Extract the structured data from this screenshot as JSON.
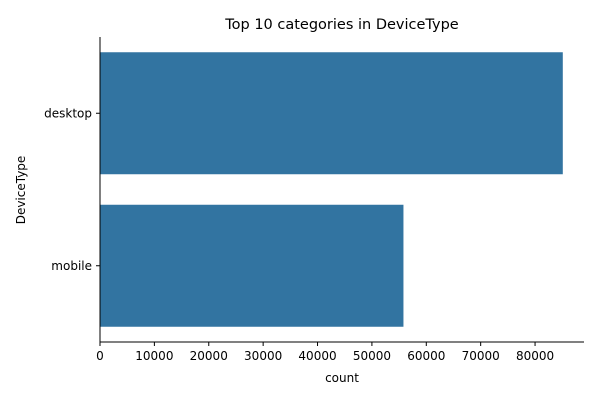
{
  "chart_data": {
    "type": "bar",
    "orientation": "horizontal",
    "title": "Top 10 categories in DeviceType",
    "xlabel": "count",
    "ylabel": "DeviceType",
    "categories": [
      "desktop",
      "mobile"
    ],
    "values": [
      85100,
      55800
    ],
    "xlim": [
      0,
      89000
    ],
    "xticks": [
      0,
      10000,
      20000,
      30000,
      40000,
      50000,
      60000,
      70000,
      80000
    ],
    "xtick_labels": [
      "0",
      "10000",
      "20000",
      "30000",
      "40000",
      "50000",
      "60000",
      "70000",
      "80000"
    ],
    "grid": false,
    "bar_color": "#3274a1"
  }
}
